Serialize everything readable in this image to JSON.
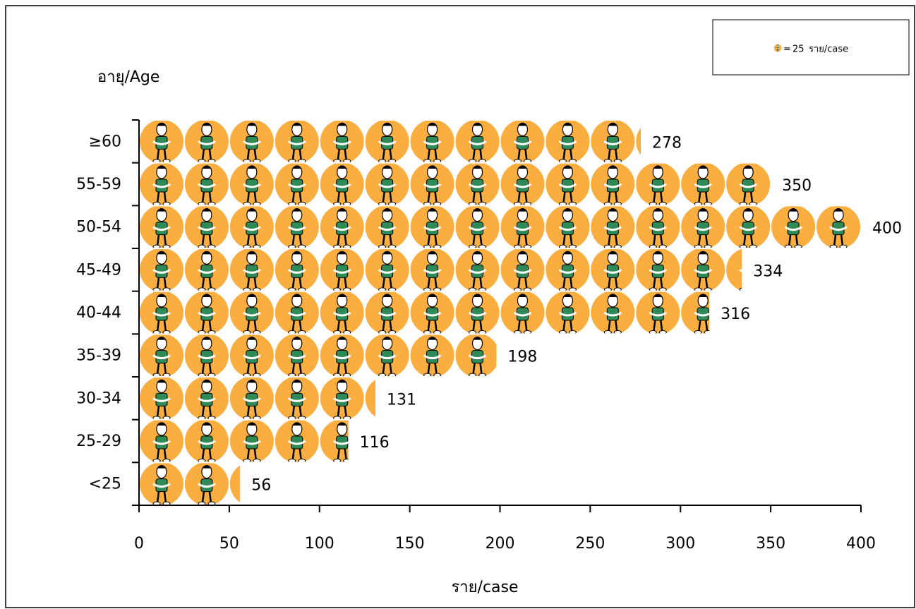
{
  "chart_data": {
    "type": "pictograph-bar",
    "orientation": "horizontal",
    "y_label": "อายุ/Age",
    "x_label": "ราย/case",
    "categories": [
      "<25",
      "25-29",
      "30-34",
      "35-39",
      "40-44",
      "45-49",
      "50-54",
      "55-59",
      "≥60"
    ],
    "values": [
      56,
      116,
      131,
      198,
      316,
      334,
      400,
      350,
      278
    ],
    "color": "#f9ae3f",
    "icon_unit": 25,
    "legend": {
      "prefix": "=",
      "suffix": "ราย/case"
    },
    "xlim": [
      0,
      400
    ],
    "xticks": [
      0,
      50,
      100,
      150,
      200,
      250,
      300,
      350,
      400
    ]
  }
}
